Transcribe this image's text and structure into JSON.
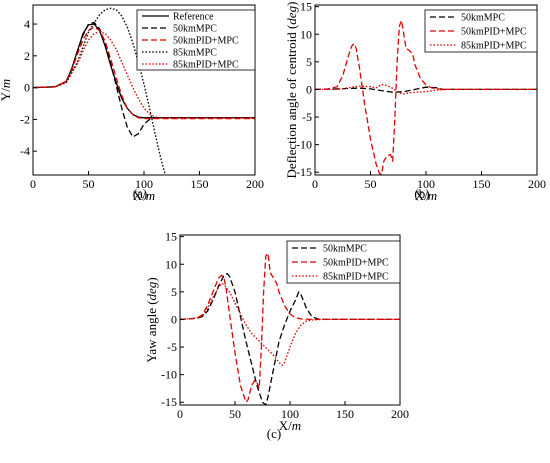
{
  "chart_data": [
    {
      "id": "a",
      "type": "line",
      "panel_label": "(a)",
      "title": "",
      "xlabel": "X/m",
      "ylabel": "Y/m",
      "xlim": [
        0,
        200
      ],
      "ylim": [
        -5.5,
        5.2
      ],
      "xticks": [
        0,
        50,
        100,
        150,
        200
      ],
      "yticks": [
        -4,
        -2,
        0,
        2,
        4
      ],
      "grid": false,
      "legend_position": "top-right",
      "series": [
        {
          "name": "Reference",
          "color": "#000000",
          "dash": "solid",
          "x": [
            0,
            20,
            30,
            35,
            40,
            45,
            50,
            55,
            60,
            65,
            70,
            75,
            80,
            85,
            90,
            95,
            100,
            110,
            120,
            200
          ],
          "y": [
            0,
            0.05,
            0.4,
            1.2,
            2.3,
            3.4,
            3.95,
            4.0,
            3.6,
            2.6,
            1.4,
            0.3,
            -0.7,
            -1.3,
            -1.7,
            -1.85,
            -1.9,
            -1.9,
            -1.9,
            -1.9
          ]
        },
        {
          "name": "50kmMPC",
          "color": "#000000",
          "dash": "dashed",
          "x": [
            0,
            20,
            30,
            35,
            40,
            45,
            50,
            55,
            60,
            65,
            70,
            75,
            80,
            85,
            90,
            95,
            100,
            105,
            110,
            120,
            200
          ],
          "y": [
            0,
            0.05,
            0.4,
            1.2,
            2.3,
            3.3,
            4.0,
            4.1,
            3.7,
            2.8,
            1.5,
            0.1,
            -1.3,
            -2.5,
            -3.1,
            -2.9,
            -2.3,
            -2.0,
            -1.9,
            -1.9,
            -1.9
          ]
        },
        {
          "name": "50kmPID+MPC",
          "color": "#e00000",
          "dash": "dashed",
          "x": [
            0,
            20,
            30,
            35,
            40,
            45,
            50,
            55,
            60,
            65,
            70,
            75,
            80,
            85,
            90,
            95,
            100,
            110,
            200
          ],
          "y": [
            0,
            0.05,
            0.4,
            1.1,
            2.1,
            3.0,
            3.6,
            3.8,
            3.6,
            2.9,
            1.8,
            0.6,
            -0.5,
            -1.3,
            -1.7,
            -1.9,
            -1.95,
            -1.95,
            -1.95
          ]
        },
        {
          "name": "85kmMPC",
          "color": "#000000",
          "dash": "dotted",
          "x": [
            0,
            20,
            30,
            40,
            50,
            60,
            65,
            70,
            75,
            80,
            85,
            90,
            95,
            100,
            105,
            110,
            115,
            120
          ],
          "y": [
            0,
            0.05,
            0.3,
            1.6,
            3.5,
            4.6,
            4.9,
            5.0,
            4.9,
            4.5,
            3.8,
            2.8,
            1.6,
            0.2,
            -1.3,
            -2.9,
            -4.4,
            -5.7
          ]
        },
        {
          "name": "85kmPID+MPC",
          "color": "#e00000",
          "dash": "dotted",
          "x": [
            0,
            20,
            30,
            40,
            45,
            50,
            55,
            60,
            65,
            70,
            75,
            80,
            85,
            90,
            95,
            100,
            105,
            110,
            115,
            120,
            200
          ],
          "y": [
            0,
            0.05,
            0.4,
            1.5,
            2.3,
            3.0,
            3.4,
            3.5,
            3.4,
            3.0,
            2.4,
            1.6,
            0.8,
            0.0,
            -0.7,
            -1.3,
            -1.65,
            -1.85,
            -1.9,
            -1.9,
            -1.9
          ]
        }
      ]
    },
    {
      "id": "b",
      "type": "line",
      "panel_label": "(b)",
      "title": "",
      "xlabel": "X/m",
      "ylabel": "Deflection angle of centroid (deg)",
      "xlim": [
        0,
        200
      ],
      "ylim": [
        -15.5,
        15.3
      ],
      "xticks": [
        0,
        50,
        100,
        150,
        200
      ],
      "yticks": [
        -15,
        -10,
        -5,
        0,
        5,
        10,
        15
      ],
      "grid": false,
      "legend_position": "top-right",
      "series": [
        {
          "name": "50kmMPC",
          "color": "#000000",
          "dash": "dashed",
          "x": [
            0,
            20,
            40,
            50,
            60,
            70,
            80,
            90,
            100,
            110,
            115,
            120,
            200
          ],
          "y": [
            0,
            0.1,
            0.25,
            0.1,
            -0.2,
            -0.5,
            -0.4,
            0,
            0.4,
            0.3,
            0,
            0,
            0
          ]
        },
        {
          "name": "50kmPID+MPC",
          "color": "#e00000",
          "dash": "dashed",
          "x": [
            0,
            10,
            20,
            25,
            30,
            33,
            35,
            37,
            40,
            45,
            50,
            55,
            58,
            60,
            62,
            65,
            68,
            70,
            72,
            74,
            76,
            78,
            80,
            82,
            85,
            88,
            90,
            95,
            100,
            105,
            110,
            120,
            200
          ],
          "y": [
            0,
            0,
            0.5,
            2.5,
            6.0,
            7.8,
            8.3,
            7.5,
            4.0,
            -3.0,
            -9.0,
            -13.5,
            -15.2,
            -15.4,
            -13.0,
            -12.0,
            -11.8,
            -13.0,
            -5.0,
            5.0,
            11.5,
            12.5,
            10.0,
            7.5,
            7.0,
            6.5,
            4.5,
            2.0,
            0.8,
            0.3,
            0.1,
            0,
            0
          ]
        },
        {
          "name": "85kmPID+MPC",
          "color": "#e00000",
          "dash": "dotted",
          "x": [
            0,
            20,
            30,
            40,
            50,
            55,
            60,
            65,
            70,
            75,
            80,
            85,
            90,
            100,
            110,
            120,
            200
          ],
          "y": [
            0,
            0,
            0.3,
            0.6,
            0.5,
            0.3,
            0.9,
            0.7,
            0.2,
            -0.6,
            -0.8,
            -0.6,
            -0.5,
            -0.4,
            -0.1,
            0,
            0
          ]
        }
      ]
    },
    {
      "id": "c",
      "type": "line",
      "panel_label": "(c)",
      "title": "",
      "xlabel": "X/m",
      "ylabel": "Yaw angle (deg)",
      "xlim": [
        0,
        200
      ],
      "ylim": [
        -15.5,
        15.3
      ],
      "xticks": [
        0,
        50,
        100,
        150,
        200
      ],
      "yticks": [
        -15,
        -10,
        -5,
        0,
        5,
        10,
        15
      ],
      "grid": false,
      "legend_position": "top-right",
      "series": [
        {
          "name": "50kmMPC",
          "color": "#000000",
          "dash": "dashed",
          "x": [
            0,
            15,
            20,
            25,
            30,
            35,
            40,
            43,
            45,
            50,
            55,
            60,
            65,
            70,
            75,
            78,
            80,
            85,
            90,
            95,
            100,
            105,
            108,
            110,
            115,
            120,
            125,
            130,
            200
          ],
          "y": [
            0,
            0.2,
            0.5,
            1.5,
            3.5,
            6.0,
            8.0,
            8.3,
            7.8,
            5.0,
            0.5,
            -4.0,
            -8.0,
            -12.0,
            -15.0,
            -15.5,
            -14.0,
            -9.0,
            -4.0,
            -1.0,
            1.5,
            3.5,
            5.0,
            4.5,
            2.0,
            0.5,
            0.1,
            0,
            0
          ]
        },
        {
          "name": "50kmPID+MPC",
          "color": "#e00000",
          "dash": "dashed",
          "x": [
            0,
            15,
            20,
            25,
            30,
            35,
            38,
            40,
            42,
            45,
            50,
            55,
            60,
            62,
            65,
            68,
            70,
            72,
            74,
            76,
            78,
            80,
            82,
            85,
            88,
            90,
            95,
            100,
            105,
            110,
            120,
            200
          ],
          "y": [
            0,
            0.2,
            0.8,
            2.5,
            5.0,
            7.5,
            8.0,
            7.5,
            5.5,
            1.0,
            -6.0,
            -12.0,
            -15.0,
            -14.5,
            -12.0,
            -11.0,
            -11.5,
            -12.5,
            -5.0,
            5.0,
            11.5,
            12.0,
            8.5,
            7.5,
            6.5,
            5.0,
            2.5,
            1.0,
            0.3,
            0.1,
            0,
            0
          ]
        },
        {
          "name": "85kmPID+MPC",
          "color": "#e00000",
          "dash": "dotted",
          "x": [
            0,
            15,
            20,
            25,
            30,
            35,
            38,
            40,
            45,
            50,
            55,
            60,
            65,
            70,
            75,
            80,
            85,
            90,
            93,
            95,
            100,
            105,
            110,
            115,
            120,
            130,
            200
          ],
          "y": [
            0,
            0.2,
            0.5,
            2.0,
            4.0,
            5.8,
            6.5,
            6.3,
            5.0,
            3.0,
            1.0,
            -1.0,
            -2.5,
            -3.5,
            -4.5,
            -5.5,
            -6.5,
            -7.8,
            -8.3,
            -7.8,
            -5.0,
            -2.5,
            -1.0,
            -0.3,
            -0.1,
            0,
            0
          ]
        }
      ]
    }
  ]
}
